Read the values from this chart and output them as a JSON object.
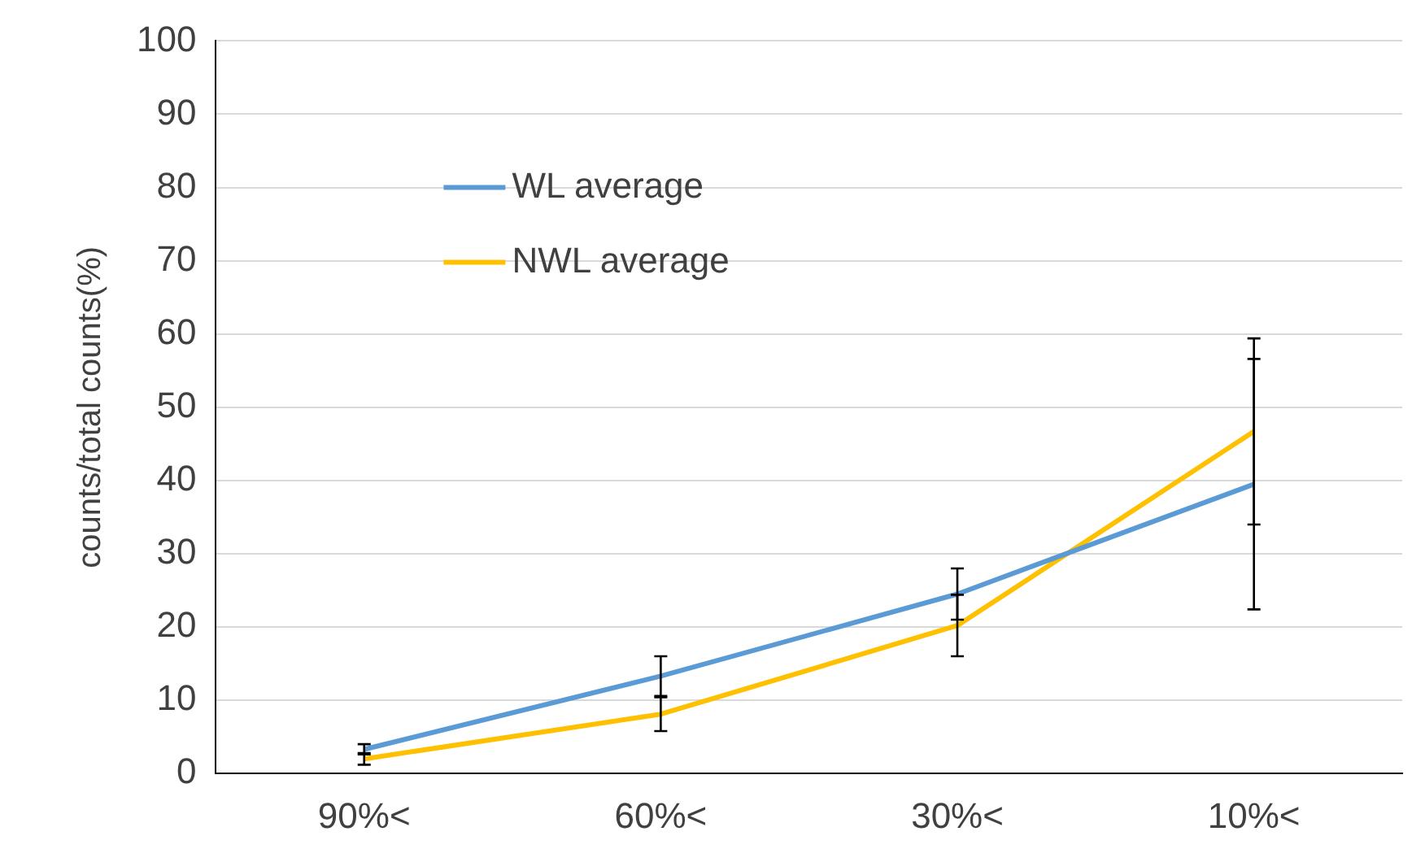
{
  "chart_data": {
    "type": "line",
    "ylabel": "counts/total counts(%)",
    "categories": [
      "90%<",
      "60%<",
      "30%<",
      "10%<"
    ],
    "series": [
      {
        "name": "WL average",
        "color": "#5b9bd5",
        "values": [
          3.3,
          13.3,
          24.5,
          39.5
        ],
        "errors": [
          0.7,
          2.7,
          3.5,
          17.1
        ]
      },
      {
        "name": "NWL average",
        "color": "#ffc000",
        "values": [
          2,
          8.1,
          20.2,
          46.7
        ],
        "errors": [
          0.8,
          2.3,
          4.2,
          12.7
        ]
      }
    ],
    "ylim": [
      0,
      100
    ],
    "yticks": [
      0,
      10,
      20,
      30,
      40,
      50,
      60,
      70,
      80,
      90,
      100
    ],
    "grid": "y",
    "legend": "top left",
    "marker": "none",
    "line_style": "solid"
  }
}
